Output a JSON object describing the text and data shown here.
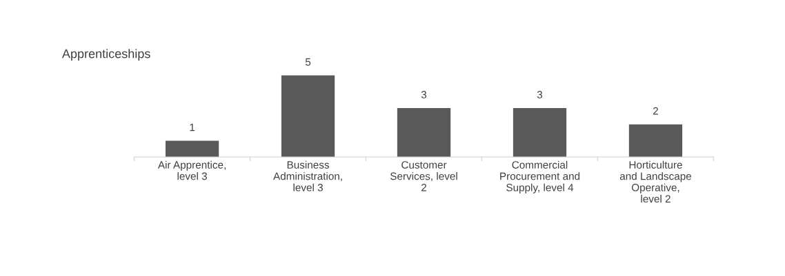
{
  "chart_data": {
    "type": "bar",
    "title": "Apprenticeships",
    "categories": [
      "Air Apprentice, level 3",
      "Business Administration, level 3",
      "Customer Services, level 2",
      "Commercial Procurement and Supply, level 4",
      "Horticulture and Landscape Operative, level 2"
    ],
    "values": [
      1,
      5,
      3,
      3,
      2
    ],
    "color": "#595959",
    "data_labels": true,
    "grid": false,
    "legend": false
  }
}
